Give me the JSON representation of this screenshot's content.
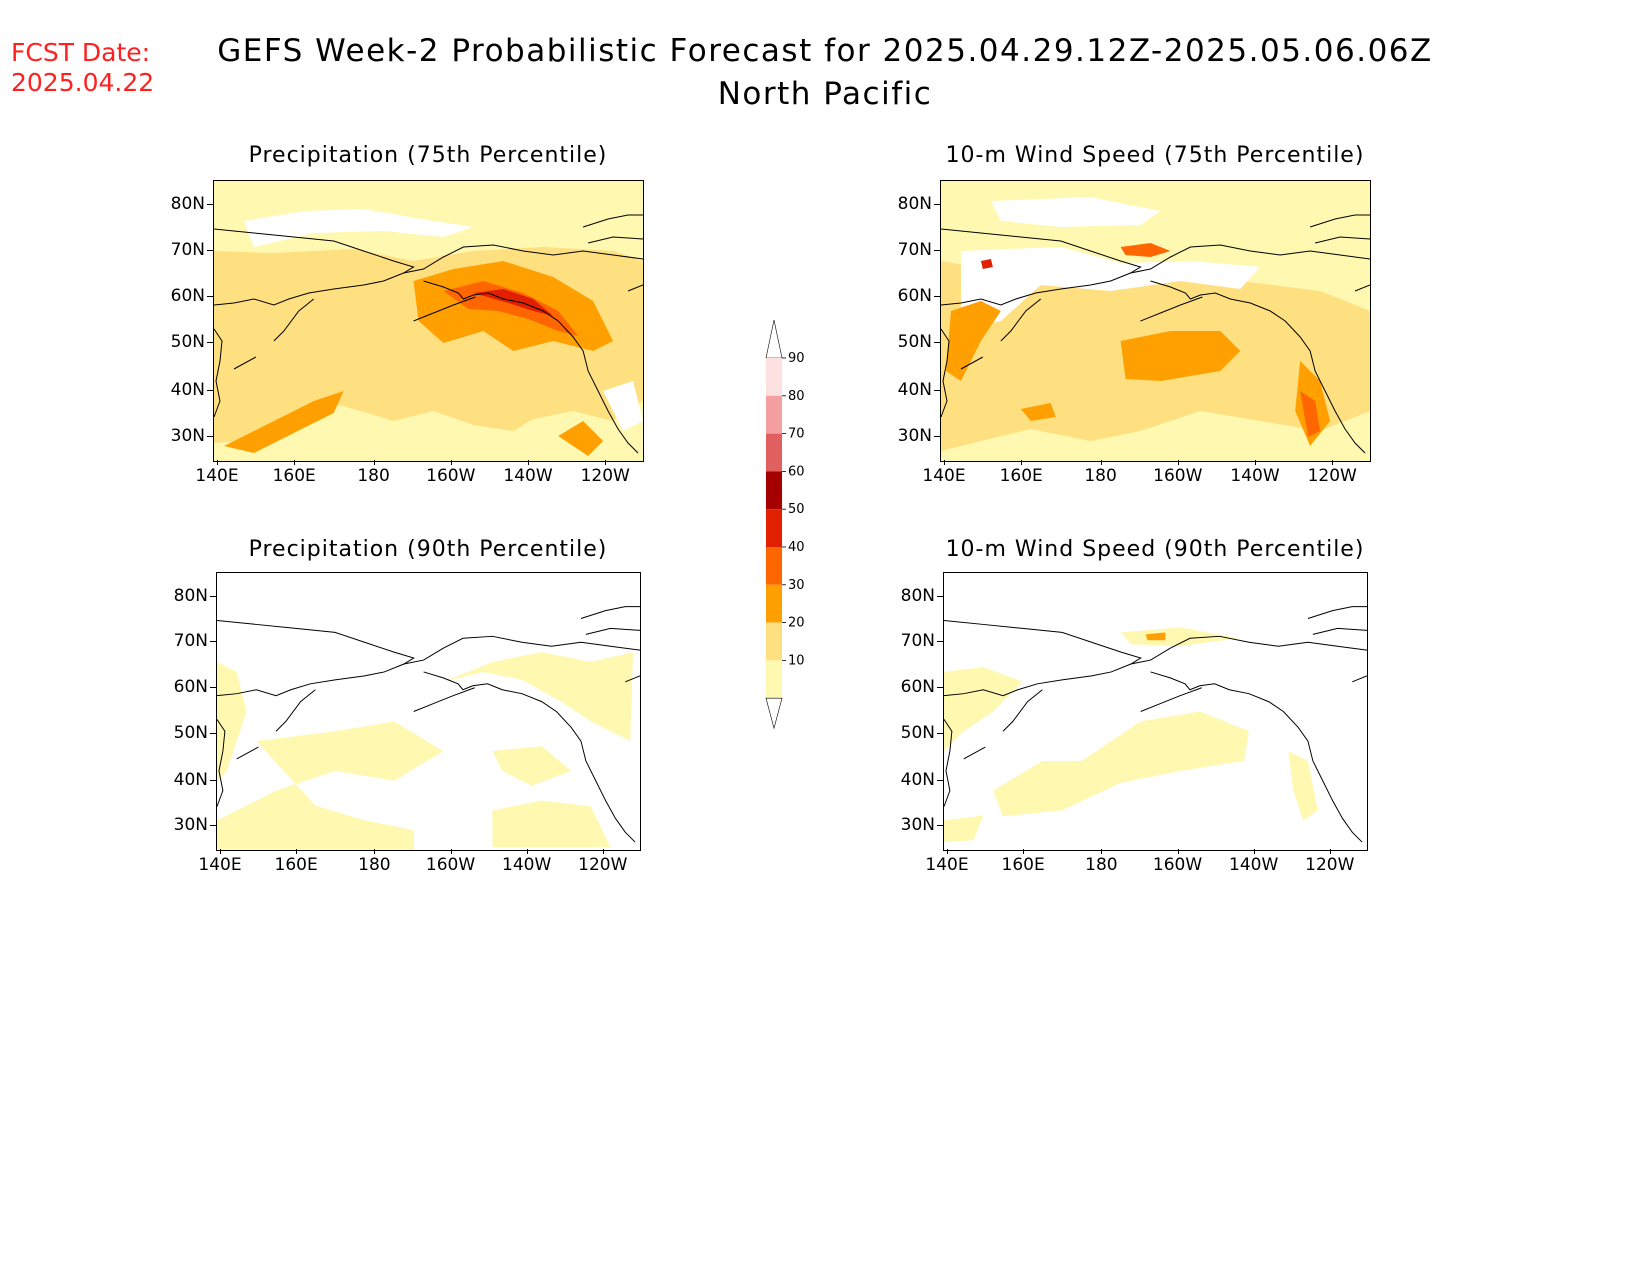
{
  "header": {
    "fcst_date_label": "FCST Date:",
    "fcst_date": "2025.04.22",
    "title_line1": "GEFS Week-2 Probabilistic Forecast for 2025.04.29.12Z-2025.05.06.06Z",
    "title_line2": "North Pacific"
  },
  "panels": [
    {
      "id": "precip75",
      "title": "Precipitation (75th Percentile)"
    },
    {
      "id": "wind75",
      "title": "10-m Wind Speed (75th Percentile)"
    },
    {
      "id": "precip90",
      "title": "Precipitation (90th Percentile)"
    },
    {
      "id": "wind90",
      "title": "10-m Wind Speed (90th Percentile)"
    }
  ],
  "axes": {
    "lat_labels": [
      "80N",
      "70N",
      "60N",
      "50N",
      "40N",
      "30N"
    ],
    "lon_labels": [
      "140E",
      "160E",
      "180",
      "160W",
      "140W",
      "120W"
    ]
  },
  "colorbar": {
    "levels": [
      "90",
      "80",
      "70",
      "60",
      "50",
      "40",
      "30",
      "20",
      "10"
    ],
    "colors": [
      "#fde0e0",
      "#f4a0a0",
      "#e06060",
      "#a50000",
      "#e02000",
      "#ff6600",
      "#ffa000",
      "#ffe080",
      "#fff8b0"
    ]
  }
}
